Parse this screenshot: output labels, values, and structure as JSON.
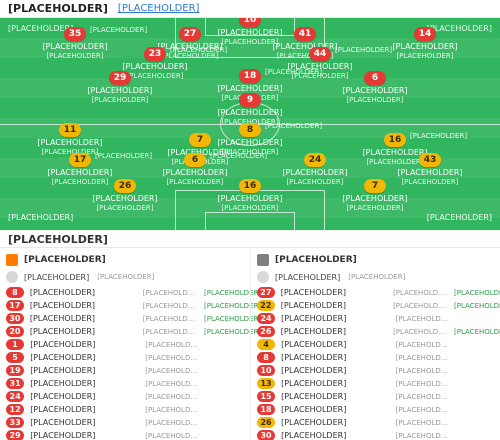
{
  "header": {
    "title": "[PLACEHOLDER]",
    "link": "[PLACEHOLDER]"
  },
  "pitch": {
    "corner_left": "[PLACEHOLDER]",
    "corner_right": "[PLACEHOLDER]",
    "formation_left": "[PLACEHOLDER]",
    "formation_right": "[PLACEHOLDER]"
  },
  "players": [
    {
      "num": "10",
      "name": "[PLACEHOLDER]",
      "sub": "[PLACEHOLDER]",
      "color": "#e53935",
      "mini": ""
    },
    {
      "num": "35",
      "name": "[PLACEHOLDER]",
      "sub": "[PLACEHOLDER]",
      "color": "#e53935",
      "mini": "[PLACEHOLDER]"
    },
    {
      "num": "27",
      "name": "[PLACEHOLDER]",
      "sub": "[PLACEHOLDER]",
      "color": "#e53935",
      "mini": ""
    },
    {
      "num": "41",
      "name": "[PLACEHOLDER]",
      "sub": "[PLACEHOLDER]",
      "color": "#e53935",
      "mini": ""
    },
    {
      "num": "14",
      "name": "[PLACEHOLDER]",
      "sub": "[PLACEHOLDER]",
      "color": "#e53935",
      "mini": ""
    },
    {
      "num": "23",
      "name": "[PLACEHOLDER]",
      "sub": "[PLACEHOLDER]",
      "color": "#e53935",
      "mini": "[PLACEHOLDER]"
    },
    {
      "num": "44",
      "name": "[PLACEHOLDER]",
      "sub": "[PLACEHOLDER]",
      "color": "#e53935",
      "mini": "[PLACEHOLDER]"
    },
    {
      "num": "29",
      "name": "[PLACEHOLDER]",
      "sub": "[PLACEHOLDER]",
      "color": "#e53935",
      "mini": ""
    },
    {
      "num": "18",
      "name": "[PLACEHOLDER]",
      "sub": "[PLACEHOLDER]",
      "color": "#e53935",
      "mini": "[PLACEHOLDER]"
    },
    {
      "num": "6",
      "name": "[PLACEHOLDER]",
      "sub": "[PLACEHOLDER]",
      "color": "#e53935",
      "mini": ""
    },
    {
      "num": "9",
      "name": "[PLACEHOLDER]",
      "sub": "[PLACEHOLDER]",
      "color": "#e53935",
      "mini": ""
    },
    {
      "num": "11",
      "name": "[PLACEHOLDER]",
      "sub": "[PLACEHOLDER]",
      "color": "#f2b705",
      "mini": ""
    },
    {
      "num": "8",
      "name": "[PLACEHOLDER]",
      "sub": "[PLACEHOLDER]",
      "color": "#f2b705",
      "mini": "[PLACEHOLDER]"
    },
    {
      "num": "7",
      "name": "[PLACEHOLDER]",
      "sub": "[PLACEHOLDER]",
      "color": "#f2b705",
      "mini": ""
    },
    {
      "num": "16",
      "name": "[PLACEHOLDER]",
      "sub": "[PLACEHOLDER]",
      "color": "#f2b705",
      "mini": "[PLACEHOLDER]"
    },
    {
      "num": "17",
      "name": "[PLACEHOLDER]",
      "sub": "[PLACEHOLDER]",
      "color": "#f2b705",
      "mini": "[PLACEHOLDER]"
    },
    {
      "num": "6",
      "name": "[PLACEHOLDER]",
      "sub": "[PLACEHOLDER]",
      "color": "#f2b705",
      "mini": "[PLACEHOLDER]"
    },
    {
      "num": "24",
      "name": "[PLACEHOLDER]",
      "sub": "[PLACEHOLDER]",
      "color": "#f2b705",
      "mini": ""
    },
    {
      "num": "43",
      "name": "[PLACEHOLDER]",
      "sub": "[PLACEHOLDER]",
      "color": "#f2b705",
      "mini": ""
    },
    {
      "num": "26",
      "name": "[PLACEHOLDER]",
      "sub": "[PLACEHOLDER]",
      "color": "#f2b705",
      "mini": ""
    },
    {
      "num": "16",
      "name": "[PLACEHOLDER]",
      "sub": "[PLACEHOLDER]",
      "color": "#f2b705",
      "mini": ""
    },
    {
      "num": "7",
      "name": "[PLACEHOLDER]",
      "sub": "[PLACEHOLDER]",
      "color": "#f2b705",
      "mini": ""
    }
  ],
  "bench": {
    "title": "[PLACEHOLDER]",
    "left": {
      "team": "[PLACEHOLDER]",
      "coach": {
        "name": "[PLACEHOLDER]",
        "role": "[PLACEHOLDER]"
      },
      "rows": [
        {
          "num": "8",
          "name": "[PLACEHOLDER]",
          "meta": "[PLACEHOLDER]",
          "sub": "[PLACEHOLDER]"
        },
        {
          "num": "17",
          "name": "[PLACEHOLDER]",
          "meta": "[PLACEHOLDER]",
          "sub": "[PLACEHOLDER]"
        },
        {
          "num": "30",
          "name": "[PLACEHOLDER]",
          "meta": "[PLACEHOLDER]",
          "sub": "[PLACEHOLDER]"
        },
        {
          "num": "20",
          "name": "[PLACEHOLDER]",
          "meta": "[PLACEHOLDER]",
          "sub": "[PLACEHOLDER]"
        },
        {
          "num": "1",
          "name": "[PLACEHOLDER]",
          "meta": "[PLACEHOLDER]",
          "sub": ""
        },
        {
          "num": "5",
          "name": "[PLACEHOLDER]",
          "meta": "[PLACEHOLDER]",
          "sub": ""
        },
        {
          "num": "19",
          "name": "[PLACEHOLDER]",
          "meta": "[PLACEHOLDER]",
          "sub": ""
        },
        {
          "num": "31",
          "name": "[PLACEHOLDER]",
          "meta": "[PLACEHOLDER]",
          "sub": ""
        },
        {
          "num": "24",
          "name": "[PLACEHOLDER]",
          "meta": "[PLACEHOLDER]",
          "sub": ""
        },
        {
          "num": "12",
          "name": "[PLACEHOLDER]",
          "meta": "[PLACEHOLDER]",
          "sub": ""
        },
        {
          "num": "33",
          "name": "[PLACEHOLDER]",
          "meta": "[PLACEHOLDER]",
          "sub": ""
        },
        {
          "num": "29",
          "name": "[PLACEHOLDER]",
          "meta": "[PLACEHOLDER]",
          "sub": ""
        }
      ]
    },
    "right": {
      "team": "[PLACEHOLDER]",
      "coach": {
        "name": "[PLACEHOLDER]",
        "role": "[PLACEHOLDER]"
      },
      "rows": [
        {
          "num": "27",
          "name": "[PLACEHOLDER]",
          "meta": "[PLACEHOLDER]",
          "sub": "[PLACEHOLDER]"
        },
        {
          "num": "22",
          "name": "[PLACEHOLDER]",
          "meta": "[PLACEHOLDER]",
          "sub": "[PLACEHOLDER]"
        },
        {
          "num": "24",
          "name": "[PLACEHOLDER]",
          "meta": "[PLACEHOLDER]",
          "sub": ""
        },
        {
          "num": "26",
          "name": "[PLACEHOLDER]",
          "meta": "[PLACEHOLDER]",
          "sub": "[PLACEHOLDER]"
        },
        {
          "num": "4",
          "name": "[PLACEHOLDER]",
          "meta": "[PLACEHOLDER]",
          "sub": ""
        },
        {
          "num": "8",
          "name": "[PLACEHOLDER]",
          "meta": "[PLACEHOLDER]",
          "sub": ""
        },
        {
          "num": "10",
          "name": "[PLACEHOLDER]",
          "meta": "[PLACEHOLDER]",
          "sub": ""
        },
        {
          "num": "13",
          "name": "[PLACEHOLDER]",
          "meta": "[PLACEHOLDER]",
          "sub": ""
        },
        {
          "num": "15",
          "name": "[PLACEHOLDER]",
          "meta": "[PLACEHOLDER]",
          "sub": ""
        },
        {
          "num": "18",
          "name": "[PLACEHOLDER]",
          "meta": "[PLACEHOLDER]",
          "sub": ""
        },
        {
          "num": "26",
          "name": "[PLACEHOLDER]",
          "meta": "[PLACEHOLDER]",
          "sub": ""
        },
        {
          "num": "30",
          "name": "[PLACEHOLDER]",
          "meta": "[PLACEHOLDER]",
          "sub": ""
        }
      ]
    }
  }
}
